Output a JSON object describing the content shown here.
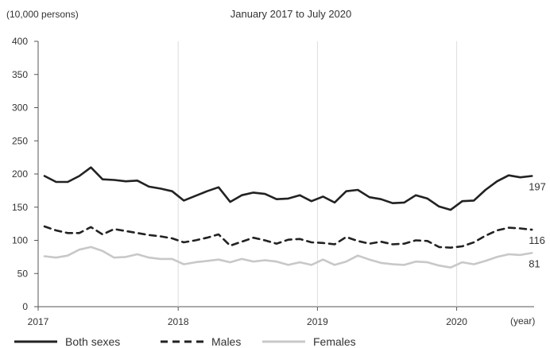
{
  "chart_data": {
    "type": "line",
    "title": "January 2017 to July 2020",
    "ylabel": "(10,000 persons)",
    "xlabel": "(year)",
    "ylim": [
      0,
      400
    ],
    "yticks": [
      "0",
      "50",
      "100",
      "150",
      "200",
      "250",
      "300",
      "350",
      "400"
    ],
    "xticks": [
      "2017",
      "2018",
      "2019",
      "2020"
    ],
    "grid": "vertical at years",
    "legend_position": "bottom",
    "series": [
      {
        "name": "Both sexes",
        "color": "#222222",
        "dash": "solid",
        "end_label": "197",
        "values": [
          197,
          188,
          188,
          197,
          210,
          192,
          191,
          189,
          190,
          181,
          178,
          174,
          160,
          167,
          174,
          180,
          158,
          168,
          172,
          170,
          162,
          163,
          168,
          159,
          166,
          157,
          174,
          176,
          165,
          162,
          156,
          157,
          168,
          163,
          151,
          146,
          159,
          160,
          176,
          189,
          198,
          195,
          197
        ]
      },
      {
        "name": "Males",
        "color": "#222222",
        "dash": "dashed",
        "end_label": "116",
        "values": [
          121,
          115,
          111,
          111,
          120,
          109,
          117,
          114,
          111,
          108,
          106,
          103,
          97,
          100,
          104,
          109,
          92,
          98,
          104,
          100,
          95,
          101,
          102,
          97,
          96,
          94,
          105,
          99,
          95,
          98,
          94,
          95,
          100,
          99,
          90,
          89,
          91,
          97,
          107,
          115,
          119,
          118,
          116
        ]
      },
      {
        "name": "Females",
        "color": "#c8c8c8",
        "dash": "solid",
        "end_label": "81",
        "values": [
          76,
          74,
          77,
          86,
          90,
          84,
          74,
          75,
          79,
          74,
          72,
          72,
          64,
          67,
          69,
          71,
          67,
          72,
          68,
          70,
          68,
          63,
          67,
          63,
          71,
          63,
          68,
          77,
          71,
          66,
          64,
          63,
          68,
          67,
          62,
          59,
          67,
          64,
          69,
          75,
          79,
          78,
          81
        ]
      }
    ]
  }
}
